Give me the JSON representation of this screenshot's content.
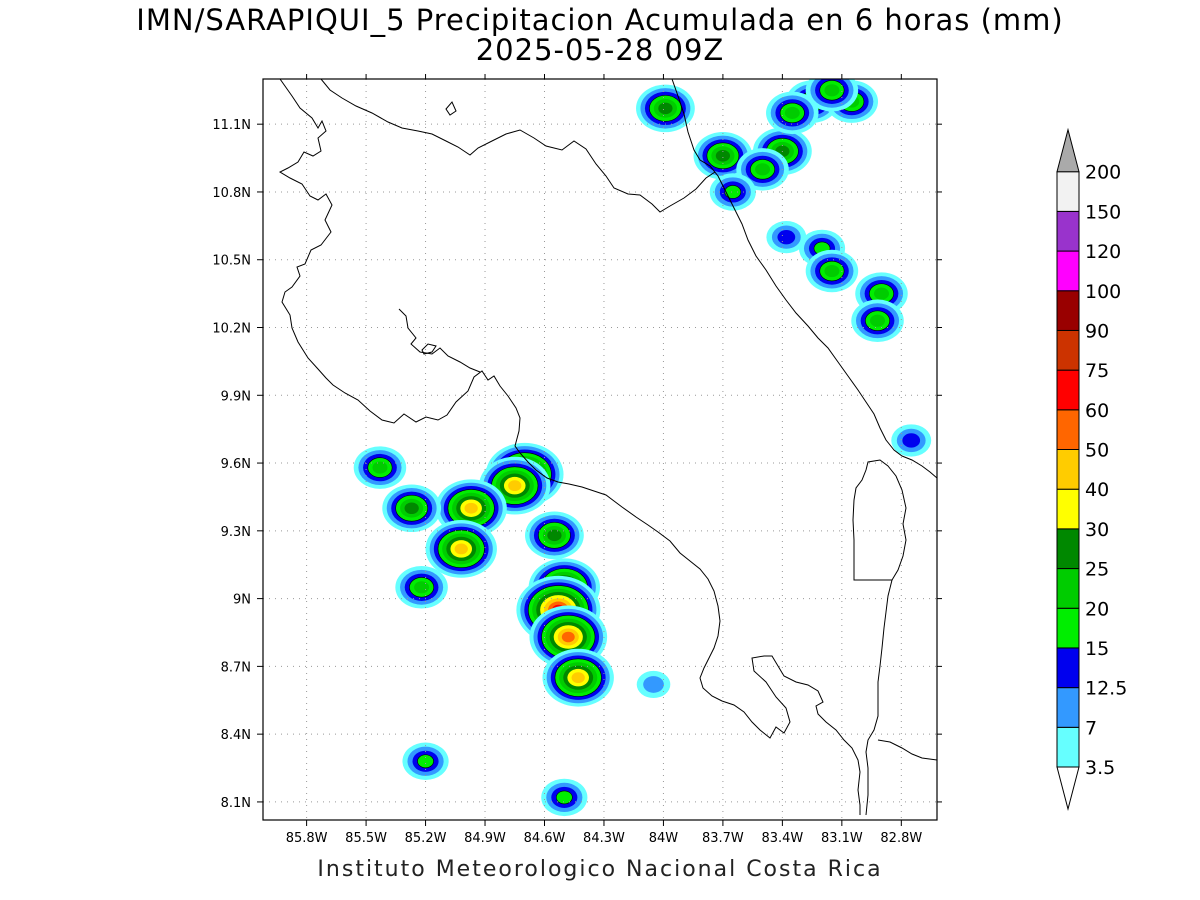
{
  "title": {
    "line1": "IMN/SARAPIQUI_5 Precipitacion Acumulada en 6 horas (mm)",
    "line2": "2025-05-28 09Z"
  },
  "credit": "Instituto Meteorologico Nacional Costa Rica",
  "map": {
    "lon_range": [
      -86.02,
      -82.62
    ],
    "lat_range": [
      8.02,
      11.3
    ],
    "lon_ticks": [
      "85.8W",
      "85.5W",
      "85.2W",
      "84.9W",
      "84.6W",
      "84.3W",
      "84W",
      "83.7W",
      "83.4W",
      "83.1W",
      "82.8W"
    ],
    "lon_tick_values": [
      -85.8,
      -85.5,
      -85.2,
      -84.9,
      -84.6,
      -84.3,
      -84.0,
      -83.7,
      -83.4,
      -83.1,
      -82.8
    ],
    "lat_ticks": [
      "11.1N",
      "10.8N",
      "10.5N",
      "10.2N",
      "9.9N",
      "9.6N",
      "9.3N",
      "9N",
      "8.7N",
      "8.4N",
      "8.1N"
    ],
    "lat_tick_values": [
      11.1,
      10.8,
      10.5,
      10.2,
      9.9,
      9.6,
      9.3,
      9.0,
      8.7,
      8.4,
      8.1
    ],
    "grid": true
  },
  "colorbar": {
    "levels": [
      "3.5",
      "7",
      "12.5",
      "15",
      "20",
      "25",
      "30",
      "40",
      "50",
      "60",
      "75",
      "90",
      "100",
      "120",
      "150",
      "200"
    ],
    "colors": [
      "#66ffff",
      "#3399ff",
      "#0000ee",
      "#00ee00",
      "#00cc00",
      "#008800",
      "#ffff00",
      "#ffcc00",
      "#ff6600",
      "#ff0000",
      "#cc3300",
      "#990000",
      "#ff00ff",
      "#9933cc",
      "#f2f2f2",
      "#aaaaaa"
    ]
  },
  "precip_cells": [
    {
      "lon": -84.7,
      "lat": 9.55,
      "max": 50
    },
    {
      "lon": -84.75,
      "lat": 9.5,
      "max": 40
    },
    {
      "lon": -84.97,
      "lat": 9.4,
      "max": 40
    },
    {
      "lon": -85.02,
      "lat": 9.22,
      "max": 40
    },
    {
      "lon": -84.5,
      "lat": 9.05,
      "max": 40
    },
    {
      "lon": -84.53,
      "lat": 8.95,
      "max": 60
    },
    {
      "lon": -84.48,
      "lat": 8.83,
      "max": 50
    },
    {
      "lon": -84.43,
      "lat": 8.65,
      "max": 40
    },
    {
      "lon": -85.27,
      "lat": 9.4,
      "max": 25
    },
    {
      "lon": -85.43,
      "lat": 9.58,
      "max": 20
    },
    {
      "lon": -84.55,
      "lat": 9.28,
      "max": 25
    },
    {
      "lon": -85.22,
      "lat": 9.05,
      "max": 20
    },
    {
      "lon": -85.2,
      "lat": 8.28,
      "max": 15
    },
    {
      "lon": -84.5,
      "lat": 8.12,
      "max": 15
    },
    {
      "lon": -83.99,
      "lat": 11.17,
      "max": 25
    },
    {
      "lon": -83.7,
      "lat": 10.96,
      "max": 25
    },
    {
      "lon": -83.4,
      "lat": 10.98,
      "max": 25
    },
    {
      "lon": -83.5,
      "lat": 10.9,
      "max": 20
    },
    {
      "lon": -83.25,
      "lat": 11.2,
      "max": 20
    },
    {
      "lon": -83.05,
      "lat": 11.2,
      "max": 20
    },
    {
      "lon": -83.35,
      "lat": 11.15,
      "max": 20
    },
    {
      "lon": -83.65,
      "lat": 10.8,
      "max": 15
    },
    {
      "lon": -83.2,
      "lat": 10.55,
      "max": 15
    },
    {
      "lon": -83.15,
      "lat": 10.45,
      "max": 20
    },
    {
      "lon": -82.9,
      "lat": 10.35,
      "max": 20
    },
    {
      "lon": -82.92,
      "lat": 10.23,
      "max": 20
    },
    {
      "lon": -83.38,
      "lat": 10.6,
      "max": 12.5
    },
    {
      "lon": -83.15,
      "lat": 11.25,
      "max": 20
    },
    {
      "lon": -82.75,
      "lat": 9.7,
      "max": 12.5
    },
    {
      "lon": -84.05,
      "lat": 8.62,
      "max": 7
    }
  ]
}
